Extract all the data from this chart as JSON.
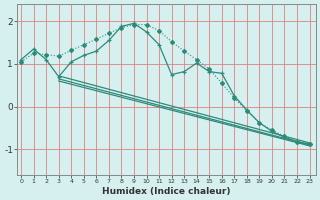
{
  "xlabel": "Humidex (Indice chaleur)",
  "bg_color": "#d6f0f0",
  "grid_color": "#e08080",
  "line_color": "#2d8b7a",
  "x_ticks": [
    0,
    1,
    2,
    3,
    4,
    5,
    6,
    7,
    8,
    9,
    10,
    11,
    12,
    13,
    14,
    15,
    16,
    17,
    18,
    19,
    20,
    21,
    22,
    23
  ],
  "ylim": [
    -1.6,
    2.4
  ],
  "xlim": [
    -0.3,
    23.5
  ],
  "line1_x": [
    0,
    1,
    2,
    3,
    4,
    5,
    6,
    7,
    8,
    9,
    10,
    11,
    12,
    13,
    14,
    15,
    16,
    17,
    18,
    19,
    20,
    21,
    22,
    23
  ],
  "line1_y": [
    1.1,
    1.35,
    1.1,
    0.7,
    1.05,
    1.2,
    1.3,
    1.55,
    1.88,
    1.95,
    1.75,
    1.45,
    0.75,
    0.82,
    1.02,
    0.82,
    0.78,
    0.25,
    -0.08,
    -0.38,
    -0.58,
    -0.72,
    -0.82,
    -0.88
  ],
  "line2_x": [
    0,
    1,
    2,
    3,
    4,
    5,
    6,
    7,
    8,
    9,
    10,
    11,
    12,
    13,
    14,
    15,
    16,
    17,
    18,
    19,
    20,
    21,
    22,
    23
  ],
  "line2_y": [
    1.05,
    1.25,
    1.22,
    1.18,
    1.32,
    1.45,
    1.58,
    1.72,
    1.85,
    1.92,
    1.92,
    1.78,
    1.52,
    1.3,
    1.1,
    0.88,
    0.55,
    0.2,
    -0.1,
    -0.38,
    -0.55,
    -0.7,
    -0.82,
    -0.88
  ],
  "line3_x": [
    3,
    23
  ],
  "line3_y": [
    0.72,
    -0.85
  ],
  "line4_x": [
    3,
    23
  ],
  "line4_y": [
    0.65,
    -0.9
  ],
  "line5_x": [
    3,
    23
  ],
  "line5_y": [
    0.6,
    -0.92
  ],
  "yticks": [
    -1,
    0,
    1,
    2
  ]
}
